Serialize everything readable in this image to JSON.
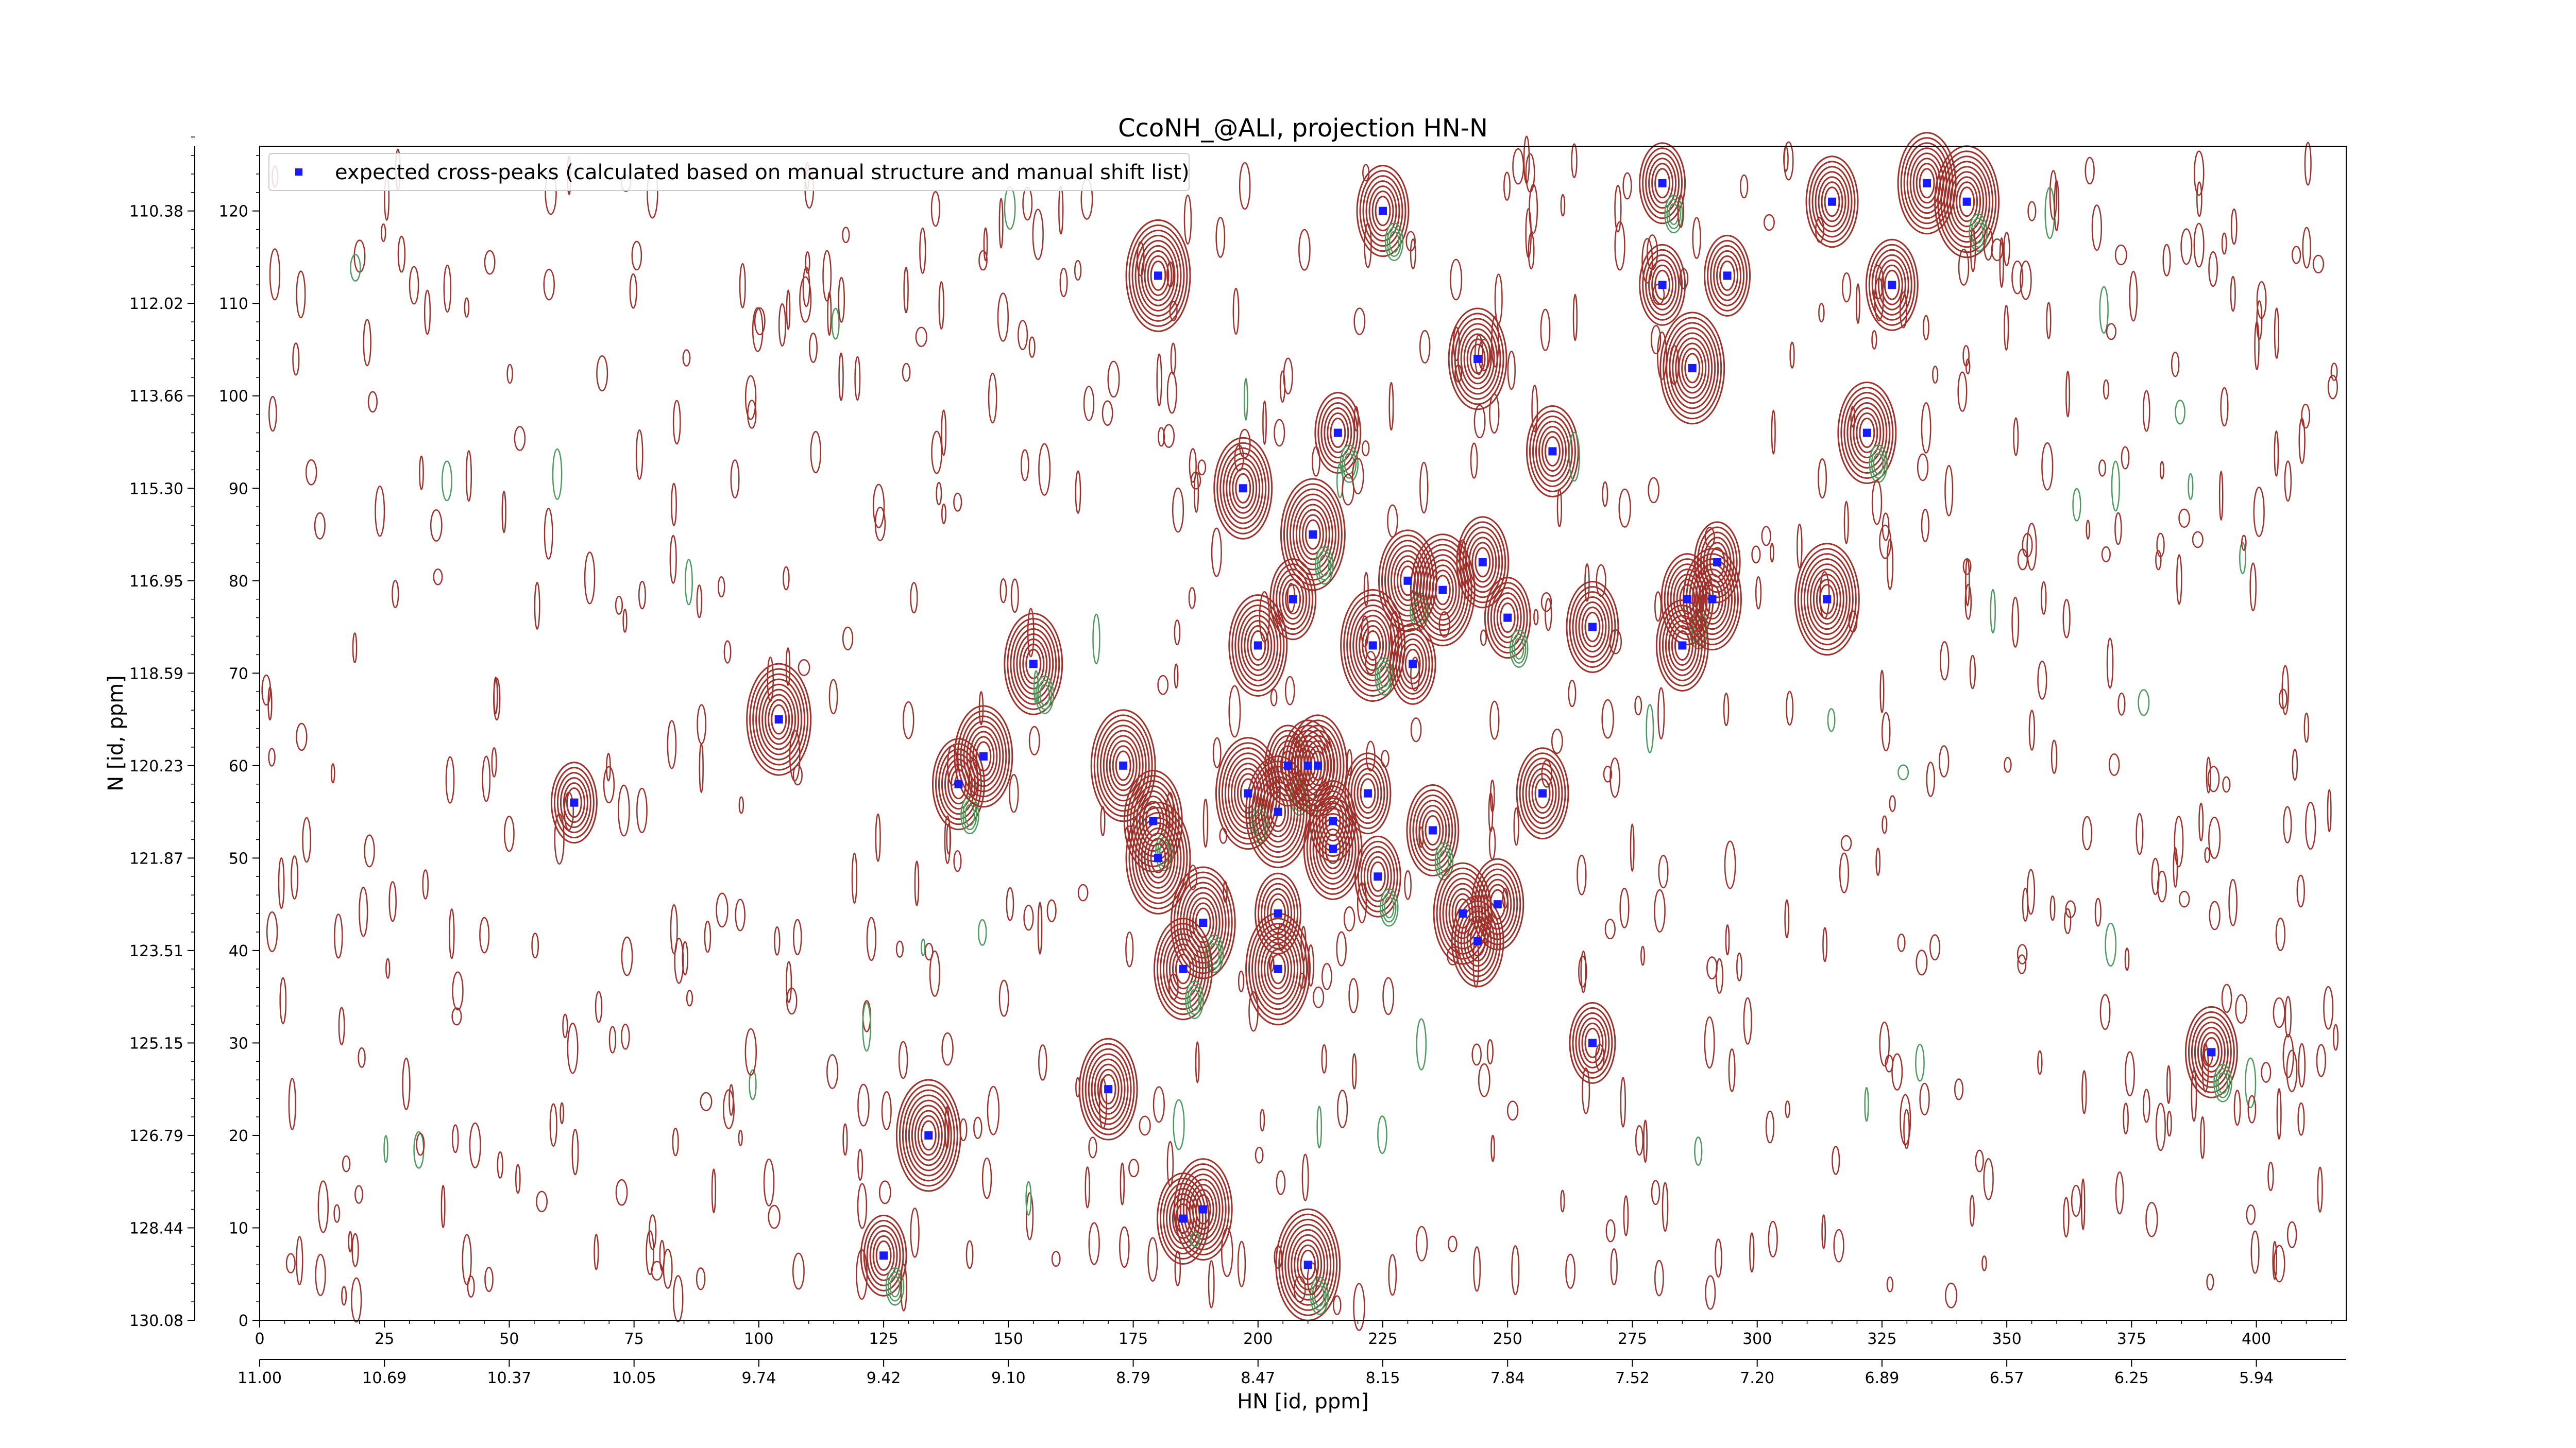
{
  "chart_data": {
    "type": "scatter",
    "title": "CcoNH_@ALI, projection HN-N",
    "xlabel": "HN [id, ppm]",
    "ylabel": "N [id, ppm]",
    "x_index_range": [
      0,
      418
    ],
    "y_index_range": [
      0,
      127
    ],
    "x_index_ticks": [
      "0",
      "25",
      "50",
      "75",
      "100",
      "125",
      "150",
      "175",
      "200",
      "225",
      "250",
      "275",
      "300",
      "325",
      "350",
      "375",
      "400"
    ],
    "x_ppm_ticks": [
      "11.00",
      "10.69",
      "10.37",
      "10.05",
      "9.74",
      "9.42",
      "9.10",
      "8.79",
      "8.47",
      "8.15",
      "7.84",
      "7.52",
      "7.20",
      "6.89",
      "6.57",
      "6.25",
      "5.94"
    ],
    "y_index_ticks": [
      "0",
      "10",
      "20",
      "30",
      "40",
      "50",
      "60",
      "70",
      "80",
      "90",
      "100",
      "110",
      "120"
    ],
    "y_ppm_ticks": [
      "130.08",
      "128.44",
      "126.79",
      "125.15",
      "123.51",
      "121.87",
      "120.23",
      "118.59",
      "116.95",
      "115.30",
      "113.66",
      "112.02",
      "110.38"
    ],
    "legend": {
      "placement": "upper-left",
      "entries": [
        "expected cross-peaks (calculated based on manual structure and manual shift list)"
      ]
    },
    "colors": {
      "peaks": "#1a1aff",
      "positive_contour": "#a0302a",
      "negative_contour": "#4c9a5e"
    },
    "series": [
      {
        "name": "expected cross-peaks (calculated based on manual structure and manual shift list)",
        "points": [
          [
            281,
            123
          ],
          [
            315,
            121
          ],
          [
            334,
            123
          ],
          [
            342,
            121
          ],
          [
            281,
            112
          ],
          [
            327,
            112
          ],
          [
            322,
            96
          ],
          [
            180,
            113
          ],
          [
            294,
            113
          ],
          [
            225,
            120
          ],
          [
            244,
            104
          ],
          [
            287,
            103
          ],
          [
            216,
            96
          ],
          [
            259,
            94
          ],
          [
            197,
            90
          ],
          [
            211,
            85
          ],
          [
            292,
            82
          ],
          [
            245,
            82
          ],
          [
            230,
            80
          ],
          [
            237,
            79
          ],
          [
            207,
            78
          ],
          [
            286,
            78
          ],
          [
            291,
            78
          ],
          [
            314,
            78
          ],
          [
            250,
            76
          ],
          [
            267,
            75
          ],
          [
            200,
            73
          ],
          [
            223,
            73
          ],
          [
            231,
            71
          ],
          [
            285,
            73
          ],
          [
            155,
            71
          ],
          [
            104,
            65
          ],
          [
            63,
            56
          ],
          [
            140,
            58
          ],
          [
            145,
            61
          ],
          [
            173,
            60
          ],
          [
            206,
            60
          ],
          [
            210,
            60
          ],
          [
            212,
            60
          ],
          [
            198,
            57
          ],
          [
            222,
            57
          ],
          [
            257,
            57
          ],
          [
            179,
            54
          ],
          [
            204,
            55
          ],
          [
            215,
            54
          ],
          [
            235,
            53
          ],
          [
            215,
            51
          ],
          [
            180,
            50
          ],
          [
            224,
            48
          ],
          [
            248,
            45
          ],
          [
            241,
            44
          ],
          [
            189,
            43
          ],
          [
            204,
            44
          ],
          [
            244,
            41
          ],
          [
            185,
            38
          ],
          [
            204,
            38
          ],
          [
            267,
            30
          ],
          [
            391,
            29
          ],
          [
            170,
            25
          ],
          [
            134,
            20
          ],
          [
            125,
            7
          ],
          [
            185,
            11
          ],
          [
            189,
            12
          ],
          [
            210,
            6
          ]
        ]
      }
    ]
  }
}
